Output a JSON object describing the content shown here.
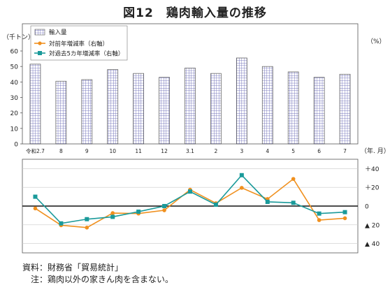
{
  "figure": {
    "title": "図12　鶏肉輸入量の推移",
    "source": "資料：財務省「貿易統計」",
    "note": "　注：鶏肉以外の家きん肉を含まない。"
  },
  "chart_data": {
    "type": "bar",
    "categories": [
      "令和2.7",
      "8",
      "9",
      "10",
      "11",
      "12",
      "3.1",
      "2",
      "3",
      "4",
      "5",
      "6",
      "7"
    ],
    "x_unit_label": "（年. 月）",
    "bar_panel": {
      "ylabel": "（千トン）",
      "ylim": [
        0,
        60
      ],
      "yticks": [
        0,
        10,
        20,
        30,
        40,
        50,
        60
      ],
      "grid": false,
      "series": [
        {
          "name": "輸入量",
          "type": "bar",
          "color": "#6f6fb8",
          "values": [
            51.5,
            40.5,
            41.5,
            48,
            45.5,
            43,
            49,
            45.5,
            55.5,
            50,
            46.5,
            43,
            45
          ]
        }
      ]
    },
    "line_panel": {
      "ylabel": "（%）",
      "ylim": [
        -50,
        50
      ],
      "yticks": [
        40,
        20,
        0,
        -20,
        -40
      ],
      "ytick_labels": [
        "＋40",
        "＋20",
        "0",
        "▲ 20",
        "▲ 40"
      ],
      "grid": true,
      "series": [
        {
          "name": "対前年増減率（右軸）",
          "type": "line",
          "color": "#f0901e",
          "values": [
            -2.5,
            -20.5,
            -23,
            -7.5,
            -8,
            -4.5,
            17.5,
            3,
            19.5,
            7.5,
            29,
            -15,
            -13
          ]
        },
        {
          "name": "対過去5カ年増減率（右軸）",
          "type": "line",
          "color": "#1a9a9a",
          "values": [
            10,
            -18.5,
            -14,
            -11.5,
            -6,
            0,
            15.5,
            1.5,
            33,
            4.5,
            3.5,
            -8,
            -6.5
          ]
        }
      ]
    },
    "legend_position": "top-left"
  }
}
